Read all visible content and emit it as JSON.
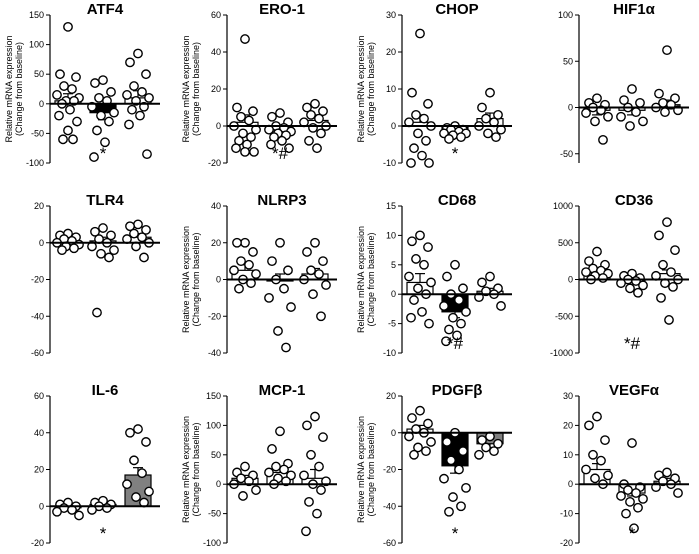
{
  "chart_data": [
    {
      "type": "bar",
      "title": "ATF4",
      "ylabel": "Relative mRNA expression",
      "ylabel2": "(Change from baseline)",
      "yticks": [
        150,
        100,
        50,
        0,
        -50,
        -100
      ],
      "ylim": [
        -100,
        150
      ],
      "series": [
        {
          "bar": 5,
          "err": 12,
          "fill": "#ffffff",
          "mark": "",
          "points": [
            130,
            50,
            45,
            30,
            25,
            15,
            10,
            5,
            5,
            0,
            -10,
            -20,
            -30,
            -45,
            -60,
            -60
          ]
        },
        {
          "bar": -15,
          "err": 12,
          "fill": "#000000",
          "mark": "*",
          "points": [
            40,
            35,
            20,
            10,
            5,
            -5,
            -15,
            -20,
            -30,
            -45,
            -65,
            -90
          ]
        },
        {
          "bar": 10,
          "err": 12,
          "fill": "#ffffff",
          "mark": "",
          "points": [
            85,
            70,
            50,
            30,
            20,
            15,
            10,
            5,
            -5,
            -10,
            -20,
            -35,
            -85
          ]
        }
      ]
    },
    {
      "type": "bar",
      "title": "ERO-1",
      "ylabel": "Relative mRNA expression",
      "ylabel2": "(Change from baseline)",
      "yticks": [
        60,
        40,
        20,
        0,
        -20
      ],
      "ylim": [
        -20,
        60
      ],
      "series": [
        {
          "bar": 2,
          "err": 4,
          "fill": "#ffffff",
          "mark": "",
          "points": [
            47,
            10,
            8,
            5,
            3,
            0,
            -2,
            -4,
            -6,
            -8,
            -10,
            -12,
            -14,
            -14
          ]
        },
        {
          "bar": -2,
          "err": 2,
          "fill": "#000000",
          "mark": "*#",
          "points": [
            7,
            5,
            2,
            0,
            -1,
            -2,
            -3,
            -4,
            -5,
            -6,
            -8,
            -10,
            -12
          ]
        },
        {
          "bar": 3,
          "err": 3,
          "fill": "#ffffff",
          "mark": "",
          "points": [
            12,
            10,
            8,
            6,
            4,
            2,
            0,
            -1,
            -4,
            -8,
            -12
          ]
        }
      ]
    },
    {
      "type": "bar",
      "title": "CHOP",
      "ylabel": "Relative mRNA expression",
      "ylabel2": "(Change from baseline)",
      "yticks": [
        30,
        20,
        10,
        0,
        -10
      ],
      "ylim": [
        -10,
        30
      ],
      "series": [
        {
          "bar": 1,
          "err": 2,
          "fill": "#ffffff",
          "mark": "",
          "points": [
            25,
            9,
            6,
            3,
            2,
            1,
            0,
            -2,
            -4,
            -6,
            -8,
            -10,
            -10
          ]
        },
        {
          "bar": -1,
          "err": 0.5,
          "fill": "#000000",
          "mark": "*",
          "points": [
            0,
            -0.5,
            -1,
            -1,
            -1.5,
            -2,
            -2,
            -2.5,
            -3,
            -3.5
          ]
        },
        {
          "bar": 2,
          "err": 1.5,
          "fill": "#ffffff",
          "mark": "",
          "points": [
            9,
            5,
            3,
            2,
            1,
            0,
            -1,
            -2,
            -3
          ]
        }
      ]
    },
    {
      "type": "bar",
      "title": "HIF1α",
      "ylabel": "",
      "ylabel2": "",
      "yticks": [
        100,
        50,
        0,
        -50
      ],
      "ylim": [
        -60,
        100
      ],
      "series": [
        {
          "bar": -3,
          "err": 5,
          "fill": "#ffffff",
          "mark": "",
          "points": [
            10,
            5,
            3,
            0,
            -3,
            -6,
            -10,
            -15,
            -35
          ]
        },
        {
          "bar": -3,
          "err": 5,
          "fill": "#ffffff",
          "mark": "",
          "points": [
            20,
            8,
            5,
            0,
            -5,
            -10,
            -15,
            -20
          ]
        },
        {
          "bar": 3,
          "err": 5,
          "fill": "#ffffff",
          "mark": "",
          "points": [
            62,
            15,
            10,
            5,
            3,
            0,
            -3,
            -5
          ]
        }
      ]
    },
    {
      "type": "bar",
      "title": "TLR4",
      "ylabel": "",
      "ylabel2": "",
      "yticks": [
        20,
        0,
        -20,
        -40,
        -60
      ],
      "ylim": [
        -60,
        20
      ],
      "series": [
        {
          "bar": 1,
          "err": 1,
          "fill": "#ffffff",
          "mark": "",
          "points": [
            5,
            4,
            3,
            2,
            1,
            0,
            -1,
            -2,
            -3,
            -4
          ]
        },
        {
          "bar": 1,
          "err": 2,
          "fill": "#ffffff",
          "mark": "",
          "points": [
            8,
            6,
            4,
            2,
            0,
            -2,
            -4,
            -6,
            -8,
            -38
          ]
        },
        {
          "bar": 3,
          "err": 2,
          "fill": "#ffffff",
          "mark": "",
          "points": [
            10,
            9,
            7,
            5,
            3,
            2,
            0,
            -2,
            -8
          ]
        }
      ]
    },
    {
      "type": "bar",
      "title": "NLRP3",
      "ylabel": "Relative mRNA expression",
      "ylabel2": "(Change from baseline)",
      "yticks": [
        40,
        20,
        0,
        -20,
        -40
      ],
      "ylim": [
        -40,
        40
      ],
      "series": [
        {
          "bar": 5,
          "err": 3,
          "fill": "#ffffff",
          "mark": "",
          "points": [
            20,
            20,
            15,
            10,
            8,
            5,
            3,
            0,
            -2,
            -5
          ]
        },
        {
          "bar": 0,
          "err": 3,
          "fill": "#ffffff",
          "mark": "",
          "points": [
            20,
            10,
            5,
            0,
            -5,
            -10,
            -15,
            -28,
            -37
          ]
        },
        {
          "bar": 3,
          "err": 3,
          "fill": "#ffffff",
          "mark": "",
          "points": [
            20,
            15,
            10,
            5,
            3,
            0,
            -3,
            -8,
            -20
          ]
        }
      ]
    },
    {
      "type": "bar",
      "title": "CD68",
      "ylabel": "Relative mRNA expression",
      "ylabel2": "(Change from baseline)",
      "yticks": [
        15,
        10,
        5,
        0,
        -5,
        -10
      ],
      "ylim": [
        -10,
        15
      ],
      "series": [
        {
          "bar": 2,
          "err": 1.5,
          "fill": "#ffffff",
          "mark": "",
          "points": [
            10,
            9,
            8,
            6,
            5,
            3,
            2,
            1,
            0,
            -1,
            -3,
            -4,
            -5
          ]
        },
        {
          "bar": -3,
          "err": 1,
          "fill": "#000000",
          "mark": "*#",
          "points": [
            5,
            3,
            1,
            0,
            -1,
            -2,
            -3,
            -4,
            -5,
            -6,
            -7,
            -8
          ]
        },
        {
          "bar": 0.5,
          "err": 0.5,
          "fill": "#ffffff",
          "mark": "",
          "points": [
            3,
            2,
            1,
            0.5,
            0,
            -0.5,
            -2
          ]
        }
      ]
    },
    {
      "type": "bar",
      "title": "CD36",
      "ylabel": "",
      "ylabel2": "",
      "yticks": [
        1000,
        500,
        0,
        -500,
        -1000
      ],
      "ylim": [
        -1000,
        1000
      ],
      "series": [
        {
          "bar": 100,
          "err": 30,
          "fill": "#ffffff",
          "mark": "",
          "points": [
            380,
            250,
            200,
            150,
            120,
            100,
            80,
            50,
            20,
            0
          ]
        },
        {
          "bar": -20,
          "err": 20,
          "fill": "#000000",
          "mark": "*#",
          "points": [
            80,
            50,
            20,
            0,
            -20,
            -50,
            -80,
            -120,
            -180
          ]
        },
        {
          "bar": 80,
          "err": 50,
          "fill": "#ffffff",
          "mark": "",
          "points": [
            780,
            600,
            400,
            200,
            100,
            50,
            0,
            -50,
            -100,
            -250,
            -550
          ]
        }
      ]
    },
    {
      "type": "bar",
      "title": "IL-6",
      "ylabel": "",
      "ylabel2": "",
      "yticks": [
        60,
        40,
        20,
        0,
        -20
      ],
      "ylim": [
        -20,
        60
      ],
      "series": [
        {
          "bar": 0,
          "err": 1,
          "fill": "#ffffff",
          "mark": "",
          "points": [
            2,
            1,
            0,
            -1,
            -2,
            -3,
            -5
          ]
        },
        {
          "bar": 1,
          "err": 1,
          "fill": "#ffffff",
          "mark": "*",
          "points": [
            3,
            2,
            1,
            0,
            -1,
            -2
          ]
        },
        {
          "bar": 17,
          "err": 4,
          "fill": "#808080",
          "mark": "",
          "points": [
            42,
            40,
            35,
            25,
            18,
            12,
            8,
            5,
            2
          ]
        }
      ]
    },
    {
      "type": "bar",
      "title": "MCP-1",
      "ylabel": "Relative mRNA expression",
      "ylabel2": "(Change from baseline)",
      "yticks": [
        150,
        100,
        50,
        0,
        -50,
        -100
      ],
      "ylim": [
        -100,
        150
      ],
      "series": [
        {
          "bar": 10,
          "err": 5,
          "fill": "#ffffff",
          "mark": "",
          "points": [
            30,
            20,
            15,
            10,
            5,
            0,
            -10,
            -20
          ]
        },
        {
          "bar": 20,
          "err": 7,
          "fill": "#ffffff",
          "mark": "",
          "points": [
            90,
            60,
            35,
            30,
            25,
            20,
            15,
            10,
            5,
            0
          ]
        },
        {
          "bar": 10,
          "err": 15,
          "fill": "#ffffff",
          "mark": "",
          "points": [
            115,
            100,
            80,
            50,
            30,
            15,
            5,
            0,
            -10,
            -30,
            -50,
            -80
          ]
        }
      ]
    },
    {
      "type": "bar",
      "title": "PDGFβ",
      "ylabel": "Relative mRNA expression",
      "ylabel2": "(Change from baseline)",
      "yticks": [
        20,
        0,
        -20,
        -40,
        -60
      ],
      "ylim": [
        -60,
        20
      ],
      "series": [
        {
          "bar": 2,
          "err": 2,
          "fill": "#ffffff",
          "mark": "",
          "points": [
            12,
            8,
            5,
            2,
            0,
            -2,
            -5,
            -8,
            -10,
            -12
          ]
        },
        {
          "bar": -18,
          "err": 4,
          "fill": "#000000",
          "mark": "*",
          "points": [
            0,
            -5,
            -10,
            -15,
            -20,
            -25,
            -30,
            -35,
            -40,
            -43
          ]
        },
        {
          "bar": -6,
          "err": 2,
          "fill": "#808080",
          "mark": "",
          "points": [
            -2,
            -4,
            -6,
            -8,
            -10,
            -12
          ]
        }
      ]
    },
    {
      "type": "bar",
      "title": "VEGFα",
      "ylabel": "",
      "ylabel2": "",
      "yticks": [
        30,
        20,
        10,
        0,
        -10,
        -20
      ],
      "ylim": [
        -20,
        30
      ],
      "series": [
        {
          "bar": 5,
          "err": 2,
          "fill": "#ffffff",
          "mark": "",
          "points": [
            23,
            20,
            15,
            10,
            8,
            5,
            3,
            2,
            0
          ]
        },
        {
          "bar": -3,
          "err": 1,
          "fill": "#ffffff",
          "mark": "*",
          "points": [
            14,
            0,
            -1,
            -2,
            -3,
            -4,
            -5,
            -6,
            -8,
            -10,
            -15
          ]
        },
        {
          "bar": 1,
          "err": 1,
          "fill": "#ffffff",
          "mark": "",
          "points": [
            4,
            3,
            2,
            1,
            0,
            -1,
            -3
          ]
        }
      ]
    }
  ]
}
